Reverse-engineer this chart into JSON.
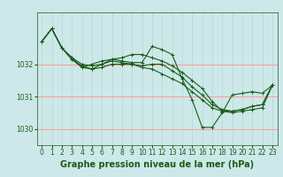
{
  "background_color": "#cce8e8",
  "plot_bg_color": "#cce8e8",
  "line_color": "#1a5c1a",
  "grid_color_v": "#b8d4d4",
  "grid_color_h": "#ff9999",
  "title": "Graphe pression niveau de la mer (hPa)",
  "ylim": [
    1029.5,
    1033.6
  ],
  "xlim": [
    -0.5,
    23.5
  ],
  "yticks": [
    1030,
    1031,
    1032
  ],
  "xticks": [
    0,
    1,
    2,
    3,
    4,
    5,
    6,
    7,
    8,
    9,
    10,
    11,
    12,
    13,
    14,
    15,
    16,
    17,
    18,
    19,
    20,
    21,
    22,
    23
  ],
  "series": [
    [
      1032.7,
      1033.1,
      1032.5,
      1032.2,
      1031.9,
      1031.85,
      1032.0,
      1032.1,
      1032.05,
      1032.0,
      1031.9,
      1031.85,
      1031.7,
      1031.55,
      1031.4,
      1031.15,
      1030.9,
      1030.65,
      1030.55,
      1030.5,
      1030.55,
      1030.6,
      1030.65,
      1031.35
    ],
    [
      1032.7,
      1033.1,
      1032.5,
      1032.15,
      1031.9,
      1032.0,
      1032.1,
      1032.15,
      1032.1,
      1032.05,
      1032.05,
      1032.55,
      1032.45,
      1032.3,
      1031.55,
      1030.9,
      1030.05,
      1030.05,
      1030.5,
      1031.05,
      1031.1,
      1031.15,
      1031.1,
      1031.35
    ],
    [
      1032.7,
      1033.1,
      1032.5,
      1032.2,
      1032.0,
      1031.95,
      1032.0,
      1032.15,
      1032.2,
      1032.3,
      1032.3,
      1032.2,
      1032.1,
      1031.95,
      1031.75,
      1031.5,
      1031.25,
      1030.85,
      1030.55,
      1030.55,
      1030.6,
      1030.7,
      1030.75,
      1031.35
    ],
    [
      1032.7,
      1033.1,
      1032.5,
      1032.15,
      1031.95,
      1031.85,
      1031.9,
      1032.0,
      1032.0,
      1032.0,
      1031.95,
      1032.0,
      1032.0,
      1031.8,
      1031.6,
      1031.3,
      1031.05,
      1030.75,
      1030.6,
      1030.55,
      1030.6,
      1030.7,
      1030.75,
      1031.35
    ]
  ],
  "marker": "+",
  "markersize": 3,
  "linewidth": 0.8,
  "title_fontsize": 7,
  "tick_fontsize": 5.5,
  "title_color": "#1a5c1a",
  "tick_color": "#1a5c1a"
}
